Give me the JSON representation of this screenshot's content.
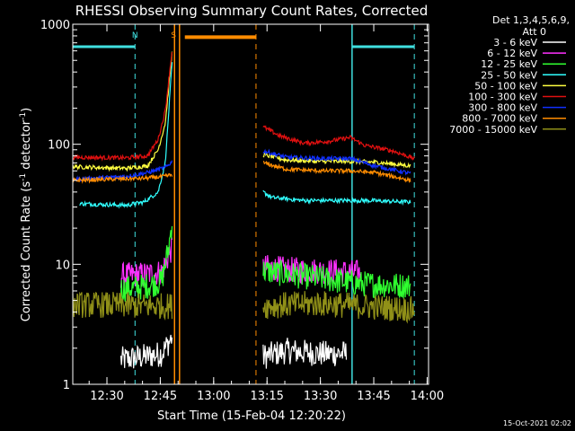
{
  "title": "RHESSI Observing Summary Count Rates, Corrected",
  "xlabel": "Start Time (15-Feb-04 12:20:22)",
  "ylabel_main": "Corrected Count Rate (s",
  "ylabel_sup1": "-1",
  "ylabel_mid": " detector",
  "ylabel_sup2": "-1",
  "ylabel_end": ")",
  "detector_info": [
    "Det 1,3,4,5,6,9,",
    "Att 0"
  ],
  "timestamp": "15-Oct-2021 02:02",
  "flags": [
    {
      "label": "N",
      "time_min": 17.5,
      "color": "#40e0e0"
    },
    {
      "label": "S",
      "time_min": 28.3,
      "color": "#ff8c00"
    }
  ],
  "chart_data": {
    "type": "line",
    "xaxis": {
      "unit": "minutes since 12:20:22",
      "range": [
        0,
        100
      ]
    },
    "xticks": [
      {
        "label": "12:30",
        "value": 9.6
      },
      {
        "label": "12:45",
        "value": 24.6
      },
      {
        "label": "13:00",
        "value": 39.6
      },
      {
        "label": "13:15",
        "value": 54.6
      },
      {
        "label": "13:30",
        "value": 69.6
      },
      {
        "label": "13:45",
        "value": 84.6
      },
      {
        "label": "14:00",
        "value": 99.6
      }
    ],
    "yaxis": {
      "scale": "log",
      "range": [
        1,
        1000
      ]
    },
    "yticks": [
      {
        "label": "1",
        "value": 1
      },
      {
        "label": "10",
        "value": 10
      },
      {
        "label": "100",
        "value": 100
      },
      {
        "label": "1000",
        "value": 1000
      }
    ],
    "night_segments": [
      {
        "start": 0,
        "end": 17.5,
        "level": 650,
        "color": "#40e0e0"
      },
      {
        "start": 78.5,
        "end": 96,
        "level": 650,
        "color": "#40e0e0"
      }
    ],
    "saa_segments": [
      {
        "start": 31.5,
        "end": 51.5,
        "level": 780,
        "color": "#ff8c00"
      }
    ],
    "vertical_markers": [
      {
        "time": 17.5,
        "color": "#40e0e0",
        "style": "dashed"
      },
      {
        "time": 96.0,
        "color": "#40e0e0",
        "style": "dashed"
      },
      {
        "time": 78.5,
        "color": "#40e0e0",
        "style": "solid"
      },
      {
        "time": 28.6,
        "color": "#ff8c00",
        "style": "solid"
      },
      {
        "time": 30.0,
        "color": "#ff8c00",
        "style": "solid"
      },
      {
        "time": 51.5,
        "color": "#ff8c00",
        "style": "dashed"
      }
    ],
    "series": [
      {
        "name": "3 - 6 keV",
        "color": "#000000",
        "segments": [
          [
            [
              13.5,
              1.6
            ],
            [
              20,
              1.7
            ],
            [
              25,
              1.8
            ],
            [
              28,
              2.5
            ]
          ],
          [
            [
              53.5,
              1.7
            ],
            [
              60,
              1.9
            ],
            [
              70,
              1.8
            ],
            [
              77,
              1.8
            ]
          ]
        ]
      },
      {
        "name": "6 - 12 keV",
        "color": "#ff30ff",
        "segments": [
          [
            [
              13.5,
              8.0
            ],
            [
              20,
              8.2
            ],
            [
              25,
              8.6
            ],
            [
              28,
              14
            ]
          ],
          [
            [
              53.5,
              9.5
            ],
            [
              60,
              9.0
            ],
            [
              70,
              8.8
            ],
            [
              80,
              8.5
            ],
            [
              81,
              8.5
            ]
          ]
        ]
      },
      {
        "name": "12 - 25 keV",
        "color": "#30ff30",
        "segments": [
          [
            [
              13.5,
              6.2
            ],
            [
              20,
              6.5
            ],
            [
              25,
              7.2
            ],
            [
              27,
              14
            ],
            [
              28,
              24
            ]
          ],
          [
            [
              53.5,
              8.8
            ],
            [
              60,
              8.3
            ],
            [
              70,
              7.6
            ],
            [
              80,
              6.9
            ],
            [
              95,
              6.6
            ]
          ]
        ]
      },
      {
        "name": "25 - 50 keV",
        "color": "#30ffff",
        "segments": [
          [
            [
              2,
              32
            ],
            [
              15,
              31
            ],
            [
              20,
              33
            ],
            [
              24,
              40
            ],
            [
              26,
              70
            ],
            [
              28,
              520
            ]
          ],
          [
            [
              53.5,
              40
            ],
            [
              56,
              36
            ],
            [
              65,
              34
            ],
            [
              75,
              34
            ],
            [
              82,
              34
            ],
            [
              95,
              33
            ]
          ]
        ]
      },
      {
        "name": "50 - 100 keV",
        "color": "#ffff40",
        "segments": [
          [
            [
              0,
              65
            ],
            [
              15,
              63
            ],
            [
              21,
              66
            ],
            [
              24,
              90
            ],
            [
              26,
              150
            ],
            [
              28,
              620
            ]
          ],
          [
            [
              53.5,
              82
            ],
            [
              60,
              74
            ],
            [
              70,
              72
            ],
            [
              78,
              72
            ],
            [
              85,
              71
            ],
            [
              95,
              66
            ]
          ]
        ]
      },
      {
        "name": "100 - 300 keV",
        "color": "#e01010",
        "segments": [
          [
            [
              0,
              78
            ],
            [
              15,
              77
            ],
            [
              21,
              80
            ],
            [
              24,
              110
            ],
            [
              26,
              190
            ],
            [
              28,
              640
            ]
          ],
          [
            [
              53.5,
              140
            ],
            [
              58,
              118
            ],
            [
              65,
              102
            ],
            [
              72,
              106
            ],
            [
              78,
              114
            ],
            [
              82,
              98
            ],
            [
              90,
              88
            ],
            [
              96,
              76
            ]
          ]
        ]
      },
      {
        "name": "300 - 800 keV",
        "color": "#1030ff",
        "segments": [
          [
            [
              0,
              51
            ],
            [
              15,
              54
            ],
            [
              21,
              58
            ],
            [
              26,
              64
            ],
            [
              28,
              72
            ]
          ],
          [
            [
              53.5,
              88
            ],
            [
              60,
              78
            ],
            [
              70,
              76
            ],
            [
              78,
              76
            ],
            [
              85,
              66
            ],
            [
              95,
              57
            ]
          ]
        ]
      },
      {
        "name": "800 - 7000 keV",
        "color": "#ff8c00",
        "segments": [
          [
            [
              0,
              50
            ],
            [
              10,
              51
            ],
            [
              20,
              52
            ],
            [
              26,
              54
            ],
            [
              28,
              56
            ]
          ],
          [
            [
              53.5,
              70
            ],
            [
              60,
              62
            ],
            [
              70,
              60
            ],
            [
              78,
              60
            ],
            [
              85,
              58
            ],
            [
              95,
              50
            ]
          ]
        ]
      },
      {
        "name": "7000 - 15000 keV",
        "color": "#909018",
        "segments": [
          [
            [
              0,
              4.6
            ],
            [
              10,
              4.6
            ],
            [
              20,
              4.5
            ],
            [
              28,
              4.5
            ]
          ],
          [
            [
              53.5,
              4.5
            ],
            [
              60,
              4.6
            ],
            [
              70,
              4.7
            ],
            [
              80,
              4.5
            ],
            [
              96,
              4.2
            ]
          ]
        ]
      }
    ]
  }
}
